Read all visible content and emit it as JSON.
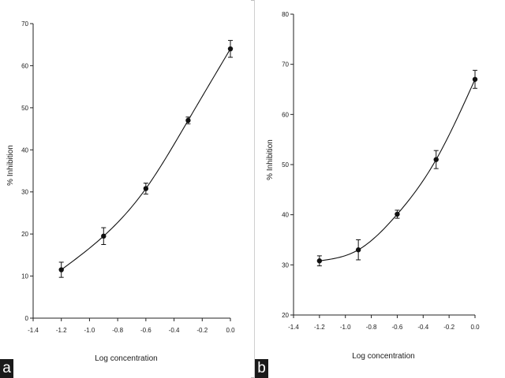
{
  "panels": [
    {
      "label": "a"
    },
    {
      "label": "b"
    }
  ],
  "chart_data": [
    {
      "type": "line",
      "panel": "a",
      "xlabel": "Log concentration",
      "ylabel": "% Inhibition",
      "xlim": [
        -1.4,
        0.0
      ],
      "ylim": [
        0,
        70
      ],
      "xticks": [
        "-1.4",
        "-1.2",
        "-1.0",
        "-0.8",
        "-0.6",
        "-0.4",
        "-0.2",
        "0.0"
      ],
      "yticks": [
        "0",
        "10",
        "20",
        "30",
        "40",
        "50",
        "60",
        "70"
      ],
      "grid": false,
      "series": [
        {
          "x": [
            -1.2,
            -0.9,
            -0.6,
            -0.3,
            0.0
          ],
          "y": [
            11.5,
            19.5,
            30.8,
            47,
            64
          ],
          "error": [
            1.8,
            2.0,
            1.3,
            0.8,
            2.0
          ],
          "color": "#111111",
          "curve": "smooth fit"
        }
      ]
    },
    {
      "type": "line",
      "panel": "b",
      "xlabel": "Log concentration",
      "ylabel": "% Inhibition",
      "xlim": [
        -1.4,
        0.0
      ],
      "ylim": [
        20,
        80
      ],
      "xticks": [
        "-1.4",
        "-1.2",
        "-1.0",
        "-0.8",
        "-0.6",
        "-0.4",
        "-0.2",
        "0.0"
      ],
      "yticks": [
        "20",
        "30",
        "40",
        "50",
        "60",
        "70",
        "80"
      ],
      "grid": false,
      "series": [
        {
          "x": [
            -1.2,
            -0.9,
            -0.6,
            -0.3,
            0.0
          ],
          "y": [
            30.8,
            33,
            40.1,
            51,
            67
          ],
          "error": [
            1.0,
            2.0,
            0.8,
            1.8,
            1.8
          ],
          "color": "#111111",
          "curve": "smooth fit"
        }
      ]
    }
  ]
}
